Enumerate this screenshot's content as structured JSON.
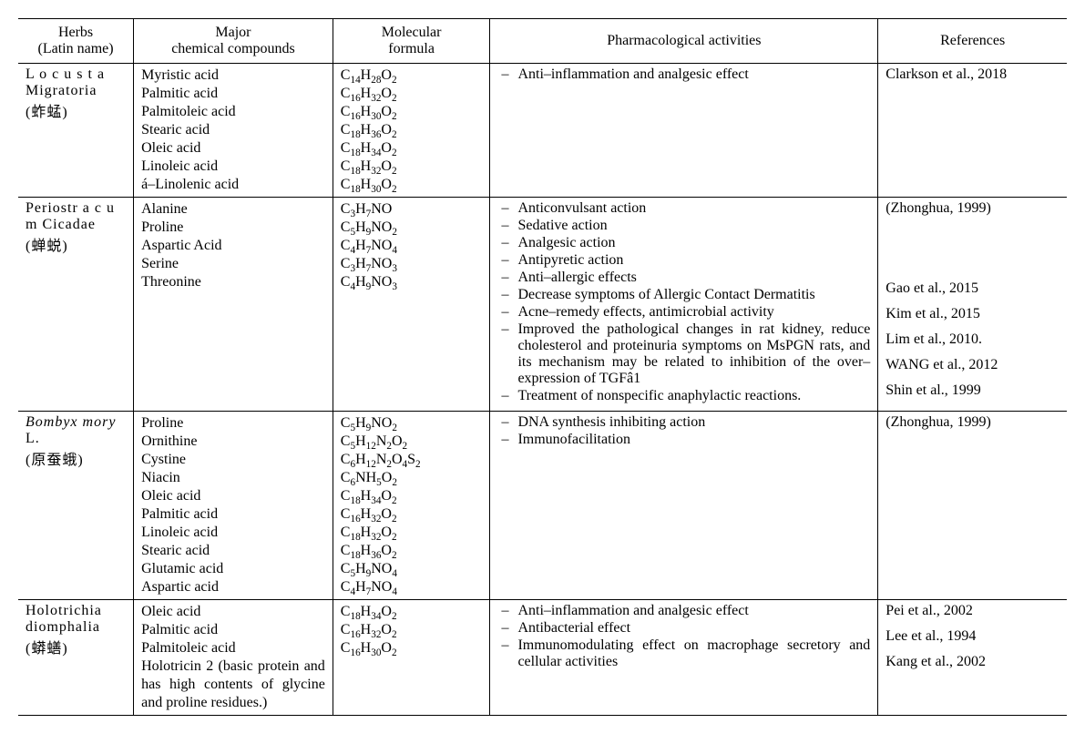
{
  "table": {
    "type": "table",
    "background_color": "#ffffff",
    "border_color": "#000000",
    "font_family": "Times New Roman",
    "font_size": 16,
    "columns": [
      {
        "key": "herbs",
        "label": "Herbs\n(Latin name)",
        "width_pct": 11,
        "align": "center"
      },
      {
        "key": "compounds",
        "label": "Major\nchemical compounds",
        "width_pct": 19,
        "align": "center"
      },
      {
        "key": "formula",
        "label": "Molecular\nformula",
        "width_pct": 15,
        "align": "center"
      },
      {
        "key": "activities",
        "label": "Pharmacological activities",
        "width_pct": 37,
        "align": "center"
      },
      {
        "key": "refs",
        "label": "References",
        "width_pct": 18,
        "align": "center"
      }
    ],
    "rows": [
      {
        "herb": {
          "latin": "L o c u s t a Migratoria",
          "italic": false,
          "cjk": "(蚱蜢)"
        },
        "compounds": [
          "Myristic acid",
          "Palmitic acid",
          "Palmitoleic acid",
          "Stearic acid",
          "Oleic acid",
          "Linoleic acid",
          "á–Linolenic acid"
        ],
        "formulas": [
          "C14H28O2",
          "C16H32O2",
          "C16H30O2",
          "C18H36O2",
          "C18H34O2",
          "C18H32O2",
          "C18H30O2"
        ],
        "activities": [
          "Anti–inflammation and analgesic effect"
        ],
        "refs": [
          "Clarkson et al., 2018"
        ]
      },
      {
        "herb": {
          "latin": "Periostr a c u m Cicadae",
          "italic": false,
          "cjk": "(蝉蜕)"
        },
        "compounds": [
          "Alanine",
          "Proline",
          "Aspartic Acid",
          "Serine",
          "Threonine"
        ],
        "formulas": [
          "C3H7NO",
          "C5H9NO2",
          "C4H7NO4",
          "C3H7NO3",
          "C4H9NO3"
        ],
        "activities": [
          "Anticonvulsant action",
          "Sedative action",
          "Analgesic action",
          "Antipyretic action",
          "Anti–allergic effects",
          "Decrease symptoms of Allergic Contact Dermatitis",
          "Acne–remedy effects, antimicrobial activity",
          "Improved the pathological changes in rat kidney, reduce cholesterol and proteinuria symptoms on MsPGN rats, and its mechanism may be related to inhibition of the over–expression of TGFâ1",
          " Treatment of nonspecific anaphylactic reactions."
        ],
        "refs": [
          "(Zhonghua, 1999)",
          "",
          "",
          "",
          "Gao et al., 2015",
          "Kim et al.,  2015",
          "Lim et al., 2010.",
          "WANG et al., 2012",
          "Shin et al.,  1999"
        ]
      },
      {
        "herb": {
          "latin": "Bombyx mory",
          "italic": true,
          "suffix": " L.",
          "cjk": "(原蚕蛾)"
        },
        "compounds": [
          "Proline",
          "Ornithine",
          "Cystine",
          "Niacin",
          "Oleic acid",
          "Palmitic acid",
          "Linoleic acid",
          "Stearic acid",
          "Glutamic acid",
          "      Aspartic acid"
        ],
        "formulas": [
          "C5H9NO2",
          "C5H12N2O2",
          "C6H12N2O4S2",
          "C6NH5O2",
          "C18H34O2",
          "C16H32O2",
          "C18H32O2",
          "C18H36O2",
          "C5H9NO4",
          "C4H7NO4"
        ],
        "activities": [
          "DNA synthesis inhibiting action",
          "Immunofacilitation"
        ],
        "refs": [
          "(Zhonghua, 1999)"
        ]
      },
      {
        "herb": {
          "latin": "Holotrichia diomphalia",
          "italic": false,
          "cjk": "(蟒蟮)"
        },
        "compounds": [
          "Oleic acid",
          "Palmitic acid",
          "Palmitoleic acid",
          "Holotricin 2 (basic protein and has high contents of glycine and proline residues.)"
        ],
        "formulas": [
          "C18H34O2",
          "C16H32O2",
          "C16H30O2"
        ],
        "activities": [
          "Anti–inflammation and analgesic effect",
          "Antibacterial effect",
          "Immunomodulating effect on macrophage secretory and cellular activities"
        ],
        "refs": [
          "Pei et al., 2002",
          "Lee et al., 1994",
          "Kang et al., 2002"
        ]
      }
    ]
  }
}
